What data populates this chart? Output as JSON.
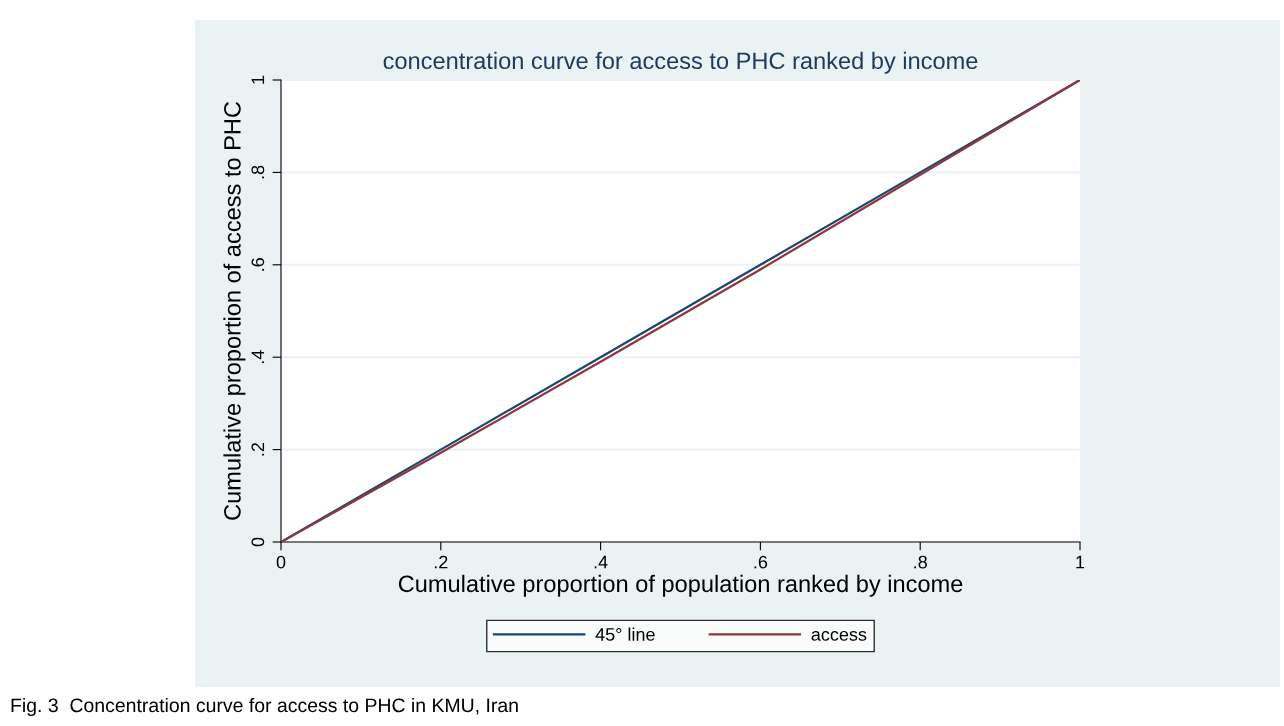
{
  "chart_data": {
    "type": "line",
    "title": "concentration curve for access to PHC ranked by income",
    "xlabel": "Cumulative proportion of population ranked by income",
    "ylabel": "Cumulative proportion of access to PHC",
    "x": [
      0,
      0.2,
      0.4,
      0.6,
      0.8,
      1
    ],
    "series": [
      {
        "name": "45° line",
        "color": "#1a476f",
        "values": [
          0,
          0.2,
          0.4,
          0.6,
          0.8,
          1
        ]
      },
      {
        "name": "access",
        "color": "#90353b",
        "values": [
          0,
          0.193,
          0.39,
          0.59,
          0.795,
          1
        ]
      }
    ],
    "xlim": [
      0,
      1
    ],
    "ylim": [
      0,
      1
    ],
    "xticks": [
      0,
      {
        "value": 0.2,
        "label": ".2"
      },
      {
        "value": 0.4,
        "label": ".4"
      },
      {
        "value": 0.6,
        "label": ".6"
      },
      {
        "value": 0.8,
        "label": ".8"
      },
      1
    ],
    "yticks": [
      0,
      {
        "value": 0.2,
        "label": ".2"
      },
      {
        "value": 0.4,
        "label": ".4"
      },
      {
        "value": 0.6,
        "label": ".6"
      },
      {
        "value": 0.8,
        "label": ".8"
      },
      1
    ],
    "grid": "y",
    "legend": "bottom",
    "marker": "none",
    "line_style": "solid",
    "annotations": [
      "Fig. 3  Concentration curve for access to PHC in KMU, Iran"
    ]
  }
}
